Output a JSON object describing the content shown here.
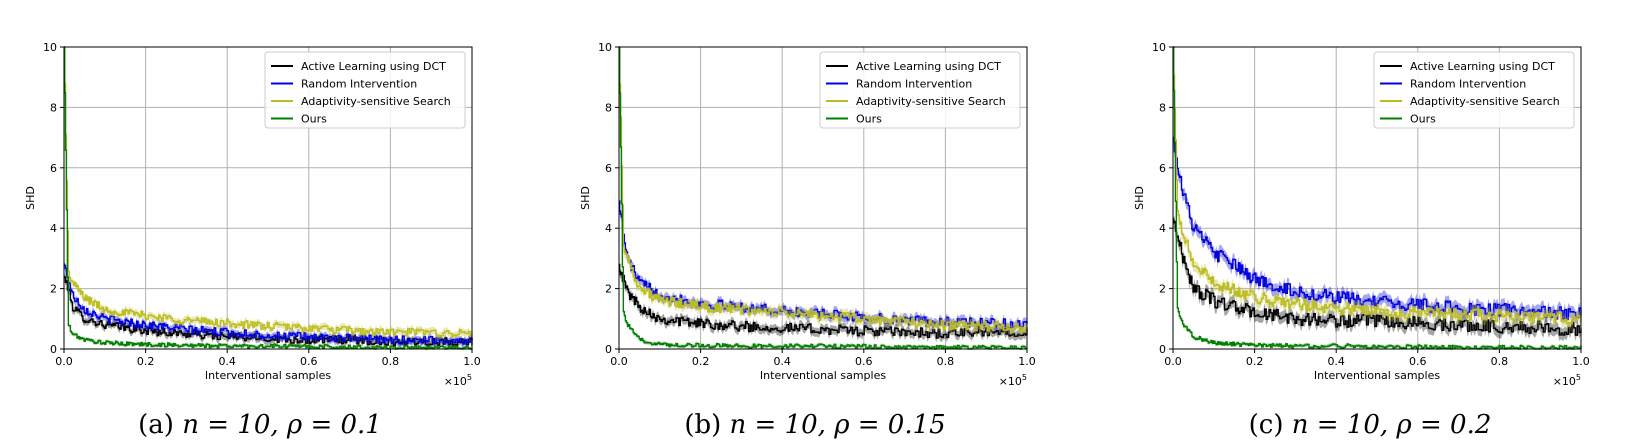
{
  "figure": {
    "panels": [
      {
        "caption_label": "(a)",
        "caption_math": "n = 10, ρ = 0.1"
      },
      {
        "caption_label": "(b)",
        "caption_math": "n = 10, ρ = 0.15"
      },
      {
        "caption_label": "(c)",
        "caption_math": "n = 10, ρ = 0.2"
      }
    ]
  },
  "colors": {
    "active_learning": "#000000",
    "random": "#0000dd",
    "adaptivity": "#bcbd22",
    "ours": "#007f00",
    "grid": "#b0b0b0"
  },
  "chart_data": [
    {
      "type": "line",
      "xlabel": "Interventional samples",
      "ylabel": "SHD",
      "x_multiplier_label": "×10",
      "x_multiplier_exp": "5",
      "xlim": [
        0.0,
        1.0
      ],
      "ylim": [
        0,
        10
      ],
      "xticks": [
        "0.0",
        "0.2",
        "0.4",
        "0.6",
        "0.8",
        "1.0"
      ],
      "yticks": [
        "0",
        "2",
        "4",
        "6",
        "8",
        "10"
      ],
      "grid": true,
      "legend_position": "top-right",
      "x": [
        0.0,
        0.01,
        0.02,
        0.05,
        0.1,
        0.2,
        0.3,
        0.4,
        0.5,
        0.6,
        0.7,
        0.8,
        0.9,
        1.0
      ],
      "series": [
        {
          "name": "Active Learning using DCT",
          "color": "#000000",
          "values": [
            2.4,
            2.0,
            1.4,
            1.0,
            0.8,
            0.6,
            0.5,
            0.4,
            0.35,
            0.3,
            0.3,
            0.25,
            0.25,
            0.25
          ],
          "band": 0.12
        },
        {
          "name": "Random Intervention",
          "color": "#0000dd",
          "values": [
            2.8,
            2.3,
            1.8,
            1.3,
            1.0,
            0.8,
            0.65,
            0.55,
            0.45,
            0.4,
            0.35,
            0.3,
            0.3,
            0.28
          ],
          "band": 0.12
        },
        {
          "name": "Adaptivity-sensitive Search",
          "color": "#bcbd22",
          "values": [
            10,
            2.5,
            2.2,
            1.7,
            1.3,
            1.1,
            0.95,
            0.85,
            0.75,
            0.7,
            0.6,
            0.55,
            0.55,
            0.5
          ],
          "band": 0.12
        },
        {
          "name": "Ours",
          "color": "#007f00",
          "values": [
            10,
            0.8,
            0.5,
            0.3,
            0.2,
            0.15,
            0.12,
            0.1,
            0.1,
            0.08,
            0.06,
            0.05,
            0.05,
            0.05
          ],
          "band": 0.06
        }
      ]
    },
    {
      "type": "line",
      "xlabel": "Interventional samples",
      "ylabel": "SHD",
      "x_multiplier_label": "×10",
      "x_multiplier_exp": "5",
      "xlim": [
        0.0,
        1.0
      ],
      "ylim": [
        0,
        10
      ],
      "xticks": [
        "0.0",
        "0.2",
        "0.4",
        "0.6",
        "0.8",
        "1.0"
      ],
      "yticks": [
        "0",
        "2",
        "4",
        "6",
        "8",
        "10"
      ],
      "grid": true,
      "legend_position": "top-right",
      "x": [
        0.0,
        0.01,
        0.02,
        0.05,
        0.1,
        0.2,
        0.3,
        0.4,
        0.5,
        0.6,
        0.7,
        0.8,
        0.9,
        1.0
      ],
      "series": [
        {
          "name": "Active Learning using DCT",
          "color": "#000000",
          "values": [
            2.8,
            2.3,
            1.9,
            1.4,
            1.0,
            0.85,
            0.75,
            0.7,
            0.65,
            0.6,
            0.55,
            0.5,
            0.55,
            0.6
          ],
          "band": 0.15
        },
        {
          "name": "Random Intervention",
          "color": "#0000dd",
          "values": [
            4.9,
            3.8,
            3.0,
            2.2,
            1.8,
            1.5,
            1.4,
            1.25,
            1.15,
            1.05,
            0.95,
            0.9,
            0.85,
            0.8
          ],
          "band": 0.15
        },
        {
          "name": "Adaptivity-sensitive Search",
          "color": "#bcbd22",
          "values": [
            10,
            3.5,
            3.0,
            2.0,
            1.6,
            1.4,
            1.3,
            1.2,
            1.1,
            1.0,
            0.9,
            0.8,
            0.75,
            0.7
          ],
          "band": 0.15
        },
        {
          "name": "Ours",
          "color": "#007f00",
          "values": [
            10,
            1.2,
            0.8,
            0.3,
            0.15,
            0.12,
            0.1,
            0.1,
            0.1,
            0.08,
            0.06,
            0.05,
            0.05,
            0.05
          ],
          "band": 0.06
        }
      ]
    },
    {
      "type": "line",
      "xlabel": "Interventional samples",
      "ylabel": "SHD",
      "x_multiplier_label": "×10",
      "x_multiplier_exp": "5",
      "xlim": [
        0.0,
        1.0
      ],
      "ylim": [
        0,
        10
      ],
      "xticks": [
        "0.0",
        "0.2",
        "0.4",
        "0.6",
        "0.8",
        "1.0"
      ],
      "yticks": [
        "0",
        "2",
        "4",
        "6",
        "8",
        "10"
      ],
      "grid": true,
      "legend_position": "top-right",
      "x": [
        0.0,
        0.01,
        0.02,
        0.05,
        0.1,
        0.2,
        0.3,
        0.4,
        0.5,
        0.6,
        0.7,
        0.8,
        0.9,
        1.0
      ],
      "series": [
        {
          "name": "Active Learning using DCT",
          "color": "#000000",
          "values": [
            4.3,
            3.8,
            3.2,
            2.0,
            1.6,
            1.2,
            1.0,
            0.95,
            0.9,
            0.85,
            0.8,
            0.75,
            0.7,
            0.65
          ],
          "band": 0.2
        },
        {
          "name": "Random Intervention",
          "color": "#0000dd",
          "values": [
            7.0,
            6.2,
            5.4,
            4.0,
            3.2,
            2.3,
            1.9,
            1.7,
            1.55,
            1.45,
            1.35,
            1.3,
            1.2,
            1.15
          ],
          "band": 0.2
        },
        {
          "name": "Adaptivity-sensitive Search",
          "color": "#bcbd22",
          "values": [
            10,
            4.5,
            4.0,
            2.8,
            2.2,
            1.7,
            1.5,
            1.35,
            1.25,
            1.2,
            1.15,
            1.1,
            1.05,
            1.0
          ],
          "band": 0.18
        },
        {
          "name": "Ours",
          "color": "#007f00",
          "values": [
            10,
            1.4,
            0.9,
            0.4,
            0.2,
            0.12,
            0.1,
            0.1,
            0.08,
            0.07,
            0.06,
            0.05,
            0.05,
            0.05
          ],
          "band": 0.06
        }
      ]
    }
  ]
}
